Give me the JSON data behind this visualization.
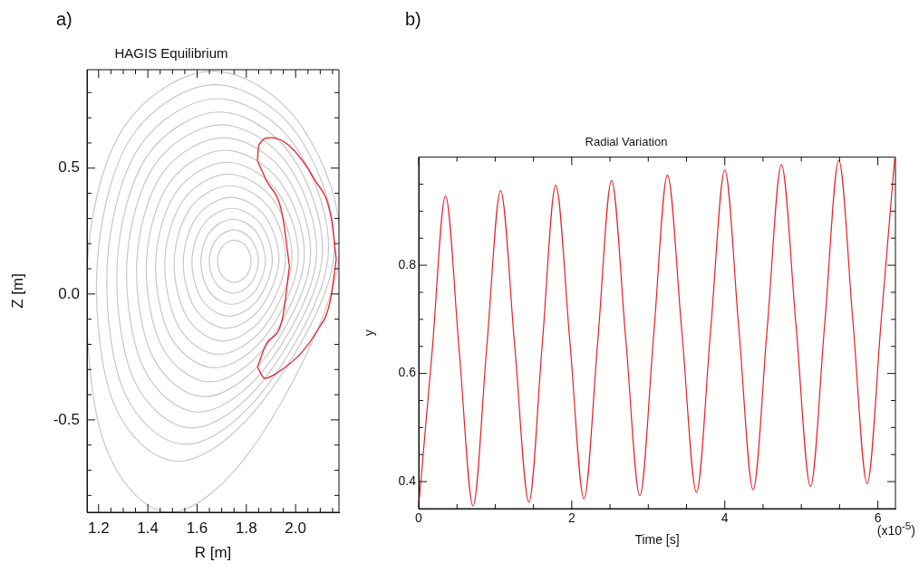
{
  "chart_data": [
    {
      "type": "line",
      "title": "HAGIS Equilibrium",
      "xlabel": "R [m]",
      "ylabel": "Z [m]",
      "annotations": [
        "a)"
      ],
      "grid": false,
      "legend": false,
      "marker": "none",
      "line_style": "solid",
      "xlim": [
        1.153,
        2.176
      ],
      "ylim": [
        -0.867,
        0.891
      ],
      "xticks": [
        {
          "value": 1.2,
          "label": "1.2"
        },
        {
          "value": 1.25,
          "label": null
        },
        {
          "value": 1.3,
          "label": null
        },
        {
          "value": 1.35,
          "label": null
        },
        {
          "value": 1.4,
          "label": "1.4"
        },
        {
          "value": 1.45,
          "label": null
        },
        {
          "value": 1.5,
          "label": null
        },
        {
          "value": 1.55,
          "label": null
        },
        {
          "value": 1.6,
          "label": "1.6"
        },
        {
          "value": 1.65,
          "label": null
        },
        {
          "value": 1.7,
          "label": null
        },
        {
          "value": 1.75,
          "label": null
        },
        {
          "value": 1.8,
          "label": "1.8"
        },
        {
          "value": 1.85,
          "label": null
        },
        {
          "value": 1.9,
          "label": null
        },
        {
          "value": 1.95,
          "label": null
        },
        {
          "value": 2.0,
          "label": "2.0"
        },
        {
          "value": 2.05,
          "label": null
        },
        {
          "value": 2.1,
          "label": null
        },
        {
          "value": 2.15,
          "label": null
        }
      ],
      "yticks": [
        {
          "value": -0.8,
          "label": null
        },
        {
          "value": -0.7,
          "label": null
        },
        {
          "value": -0.6,
          "label": null
        },
        {
          "value": -0.5,
          "label": "-0.5"
        },
        {
          "value": -0.4,
          "label": null
        },
        {
          "value": -0.3,
          "label": null
        },
        {
          "value": -0.2,
          "label": null
        },
        {
          "value": -0.1,
          "label": null
        },
        {
          "value": 0,
          "label": "0.0"
        },
        {
          "value": 0.1,
          "label": null
        },
        {
          "value": 0.2,
          "label": null
        },
        {
          "value": 0.3,
          "label": null
        },
        {
          "value": 0.4,
          "label": null
        },
        {
          "value": 0.5,
          "label": "0.5"
        },
        {
          "value": 0.6,
          "label": null
        },
        {
          "value": 0.7,
          "label": null
        },
        {
          "value": 0.8,
          "label": null
        }
      ],
      "series": [
        {
          "color": "#e8202a",
          "x": [
            1.845,
            1.85,
            1.9,
            1.972,
            2.078,
            2.145,
            2.165
          ],
          "values": [
            0.53,
            0.59,
            0.621,
            0.591,
            0.453,
            0.3,
            0.137
          ]
        },
        {
          "color": "#e8202a",
          "x": [
            1.845,
            1.875,
            1.93,
            2.025,
            2.085,
            2.14,
            2.165
          ],
          "values": [
            -0.29,
            -0.335,
            -0.31,
            -0.232,
            -0.15,
            -0.03,
            0.137
          ]
        },
        {
          "color": "#e8202a",
          "x": [
            1.845,
            1.88,
            1.945,
            1.975
          ],
          "values": [
            0.53,
            0.453,
            0.32,
            0.11
          ]
        },
        {
          "color": "#e8202a",
          "x": [
            1.845,
            1.88,
            1.946,
            1.975
          ],
          "values": [
            -0.29,
            -0.2,
            -0.1,
            0.11
          ]
        }
      ]
    },
    {
      "type": "line",
      "title": "Radial Variation",
      "xlabel": "Time [s]",
      "ylabel": "y",
      "annotations": [
        "b)",
        "(x10$^{-5}$)"
      ],
      "grid": false,
      "legend": false,
      "marker": "none",
      "line_style": "solid",
      "xlim": [
        0,
        6.23
      ],
      "ylim": [
        0.35,
        1.0
      ],
      "xticks": [
        0,
        {
          "value": 0.5,
          "label": null
        },
        {
          "value": 1,
          "label": null
        },
        {
          "value": 1.5,
          "label": null
        },
        2,
        {
          "value": 2.5,
          "label": null
        },
        {
          "value": 3,
          "label": null
        },
        {
          "value": 3.5,
          "label": null
        },
        4,
        {
          "value": 4.5,
          "label": null
        },
        {
          "value": 5,
          "label": null
        },
        {
          "value": 5.5,
          "label": null
        },
        6
      ],
      "yticks": [
        0.4,
        {
          "value": 0.45,
          "label": null
        },
        {
          "value": 0.5,
          "label": null
        },
        {
          "value": 0.55,
          "label": null
        },
        0.6,
        {
          "value": 0.65,
          "label": null
        },
        {
          "value": 0.7,
          "label": null
        },
        {
          "value": 0.75,
          "label": null
        },
        0.8,
        {
          "value": 0.85,
          "label": null
        },
        {
          "value": 0.9,
          "label": null
        },
        {
          "value": 0.95,
          "label": null
        }
      ],
      "series": [
        {
          "color": "#e8202a",
          "x": [
            0,
            0.175,
            0.35,
            0.53,
            0.71,
            0.89,
            1.07,
            1.255,
            1.44,
            1.615,
            1.79,
            1.975,
            2.16,
            2.34,
            2.52,
            2.705,
            2.89,
            3.07,
            3.25,
            3.44,
            3.63,
            3.815,
            4.0,
            4.185,
            4.37,
            4.555,
            4.74,
            4.93,
            5.12,
            5.305,
            5.49,
            5.675,
            5.86,
            6.045,
            6.22
          ],
          "values": [
            0.355,
            0.64,
            0.928,
            0.64,
            0.355,
            0.65,
            0.938,
            0.65,
            0.362,
            0.655,
            0.948,
            0.66,
            0.368,
            0.66,
            0.957,
            0.665,
            0.374,
            0.67,
            0.967,
            0.675,
            0.38,
            0.68,
            0.976,
            0.68,
            0.385,
            0.685,
            0.986,
            0.69,
            0.391,
            0.69,
            0.994,
            0.695,
            0.396,
            0.7,
            0.998
          ]
        }
      ]
    }
  ]
}
